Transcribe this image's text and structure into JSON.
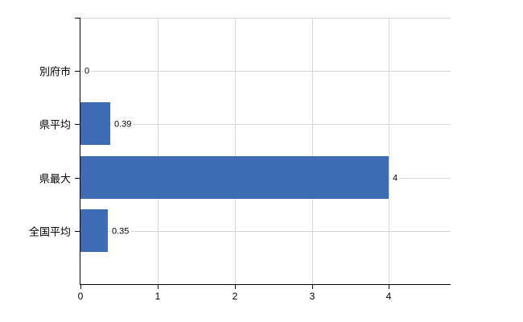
{
  "chart_data": {
    "type": "bar",
    "orientation": "horizontal",
    "title": "",
    "xlabel": "",
    "ylabel": "",
    "categories": [
      "別府市",
      "県平均",
      "県最大",
      "全国平均"
    ],
    "values": [
      0,
      0.39,
      4,
      0.35
    ],
    "value_labels": [
      "0",
      "0.39",
      "4",
      "0.35"
    ],
    "x_ticks": [
      0,
      1,
      2,
      3,
      4
    ],
    "x_tick_labels": [
      "0",
      "1",
      "2",
      "3",
      "4"
    ],
    "xlim": [
      0,
      4.8
    ],
    "grid": true,
    "legend": "none",
    "colors": {
      "bar": "#3d6cb4",
      "grid": "#d4d4d4",
      "axis": "#000000",
      "text": "#000000",
      "background": "#ffffff"
    }
  }
}
